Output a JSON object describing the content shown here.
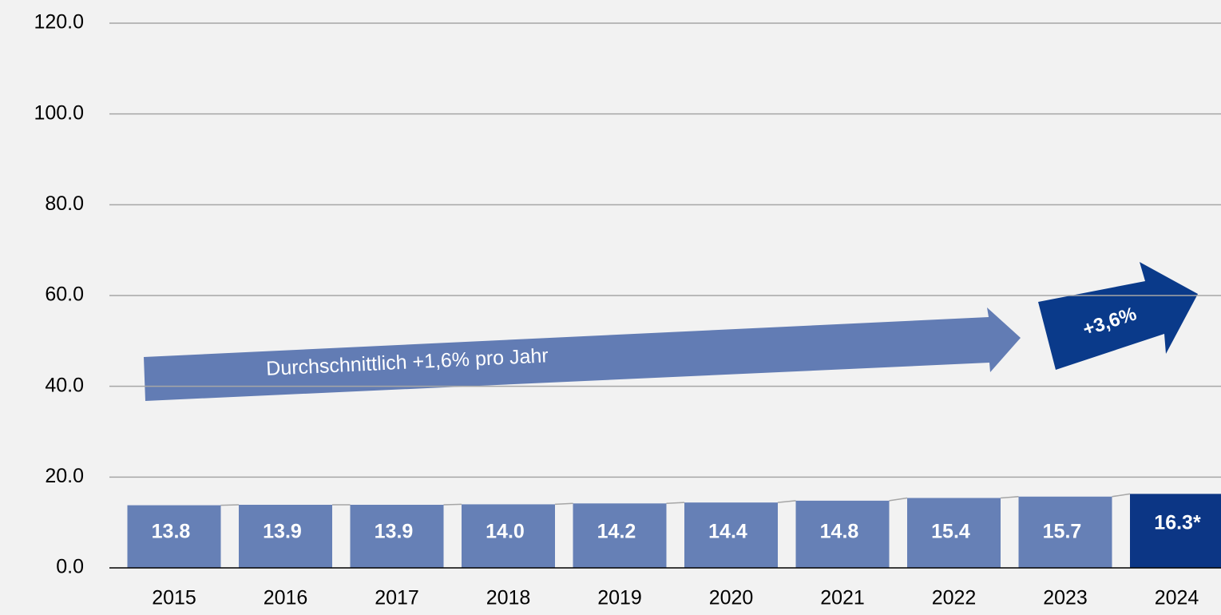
{
  "chart_data": {
    "type": "bar",
    "categories": [
      "2015",
      "2016",
      "2017",
      "2018",
      "2019",
      "2020",
      "2021",
      "2022",
      "2023",
      "2024"
    ],
    "values": [
      13.8,
      13.9,
      13.9,
      14.0,
      14.2,
      14.4,
      14.8,
      15.4,
      15.7,
      16.3
    ],
    "value_labels": [
      "13.8",
      "13.9",
      "13.9",
      "14.0",
      "14.2",
      "14.4",
      "14.8",
      "15.4",
      "15.7",
      "16.3*"
    ],
    "colors": [
      "#6680b6",
      "#6680b6",
      "#6680b6",
      "#6680b6",
      "#6680b6",
      "#6680b6",
      "#6680b6",
      "#6680b6",
      "#6680b6",
      "#0c3685"
    ],
    "ylim": [
      0,
      120
    ],
    "yticks": [
      {
        "value": 0,
        "label": "0.0"
      },
      {
        "value": 20,
        "label": "20.0"
      },
      {
        "value": 40,
        "label": "40.0"
      },
      {
        "value": 60,
        "label": "60.0"
      },
      {
        "value": 80,
        "label": "80.0"
      },
      {
        "value": 100,
        "label": "100.0"
      },
      {
        "value": 120,
        "label": "120.0"
      }
    ],
    "grid": true,
    "annotations": [
      "Durchschnittlich +1,6% pro Jahr",
      "+3,6%"
    ]
  }
}
